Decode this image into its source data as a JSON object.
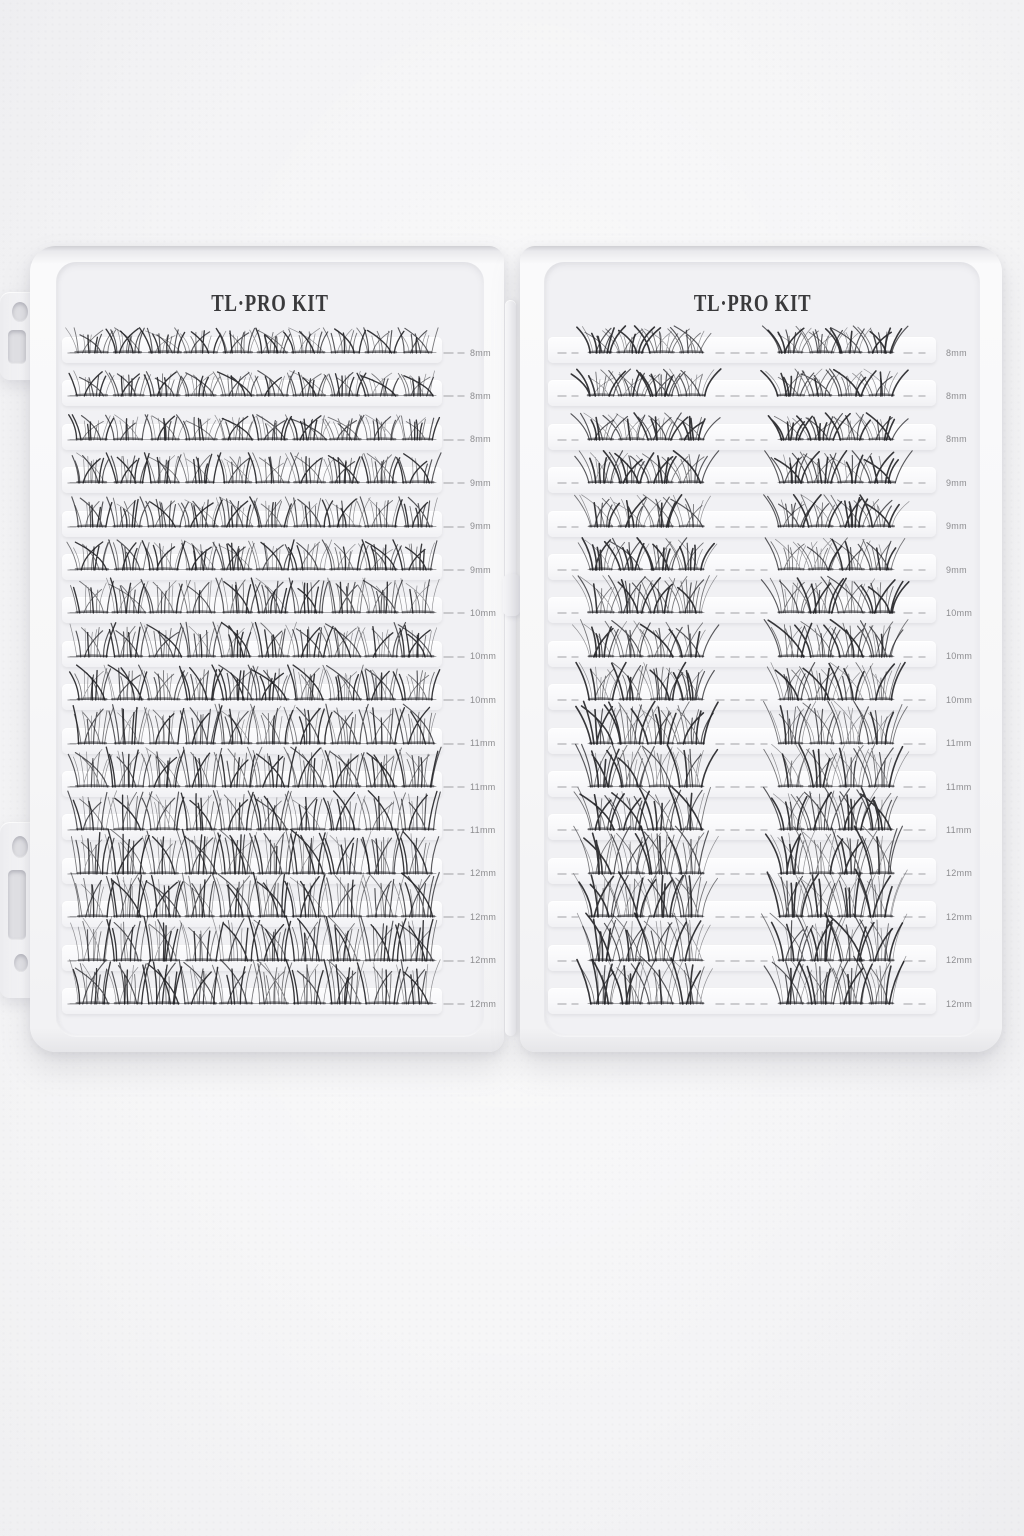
{
  "scene": {
    "description": "Open white clamshell lash case (top-down product photo) holding two trays of individual false-lash clusters",
    "background_color": "#f5f5f6"
  },
  "brand": {
    "name": "TL·PRO KIT"
  },
  "trays": [
    {
      "id": "left",
      "title": "TL·PRO KIT",
      "cluster_layout": "continuous band of about 10 narrow clusters per row",
      "rows": [
        {
          "size": "8mm"
        },
        {
          "size": "8mm"
        },
        {
          "size": "8mm"
        },
        {
          "size": "9mm"
        },
        {
          "size": "9mm"
        },
        {
          "size": "9mm"
        },
        {
          "size": "10mm"
        },
        {
          "size": "10mm"
        },
        {
          "size": "10mm"
        },
        {
          "size": "11mm"
        },
        {
          "size": "11mm"
        },
        {
          "size": "11mm"
        },
        {
          "size": "12mm"
        },
        {
          "size": "12mm"
        },
        {
          "size": "12mm"
        },
        {
          "size": "12mm"
        }
      ]
    },
    {
      "id": "right",
      "title": "TL·PRO KIT",
      "cluster_layout": "two groups of 4 wide-fan clusters per row with dashed leader line",
      "rows": [
        {
          "size": "8mm"
        },
        {
          "size": "8mm"
        },
        {
          "size": "8mm"
        },
        {
          "size": "9mm"
        },
        {
          "size": "9mm"
        },
        {
          "size": "9mm"
        },
        {
          "size": "10mm"
        },
        {
          "size": "10mm"
        },
        {
          "size": "10mm"
        },
        {
          "size": "11mm"
        },
        {
          "size": "11mm"
        },
        {
          "size": "11mm"
        },
        {
          "size": "12mm"
        },
        {
          "size": "12mm"
        },
        {
          "size": "12mm"
        },
        {
          "size": "12mm"
        }
      ]
    }
  ],
  "colors": {
    "lash": "#1b1b1f",
    "band_line": "#2a2a30",
    "dash": "#9c9c9f",
    "label_text": "#8d8d90",
    "title_text": "#3a3a3c",
    "tray": "#f7f7f8",
    "strip": "#fbfbfd"
  }
}
